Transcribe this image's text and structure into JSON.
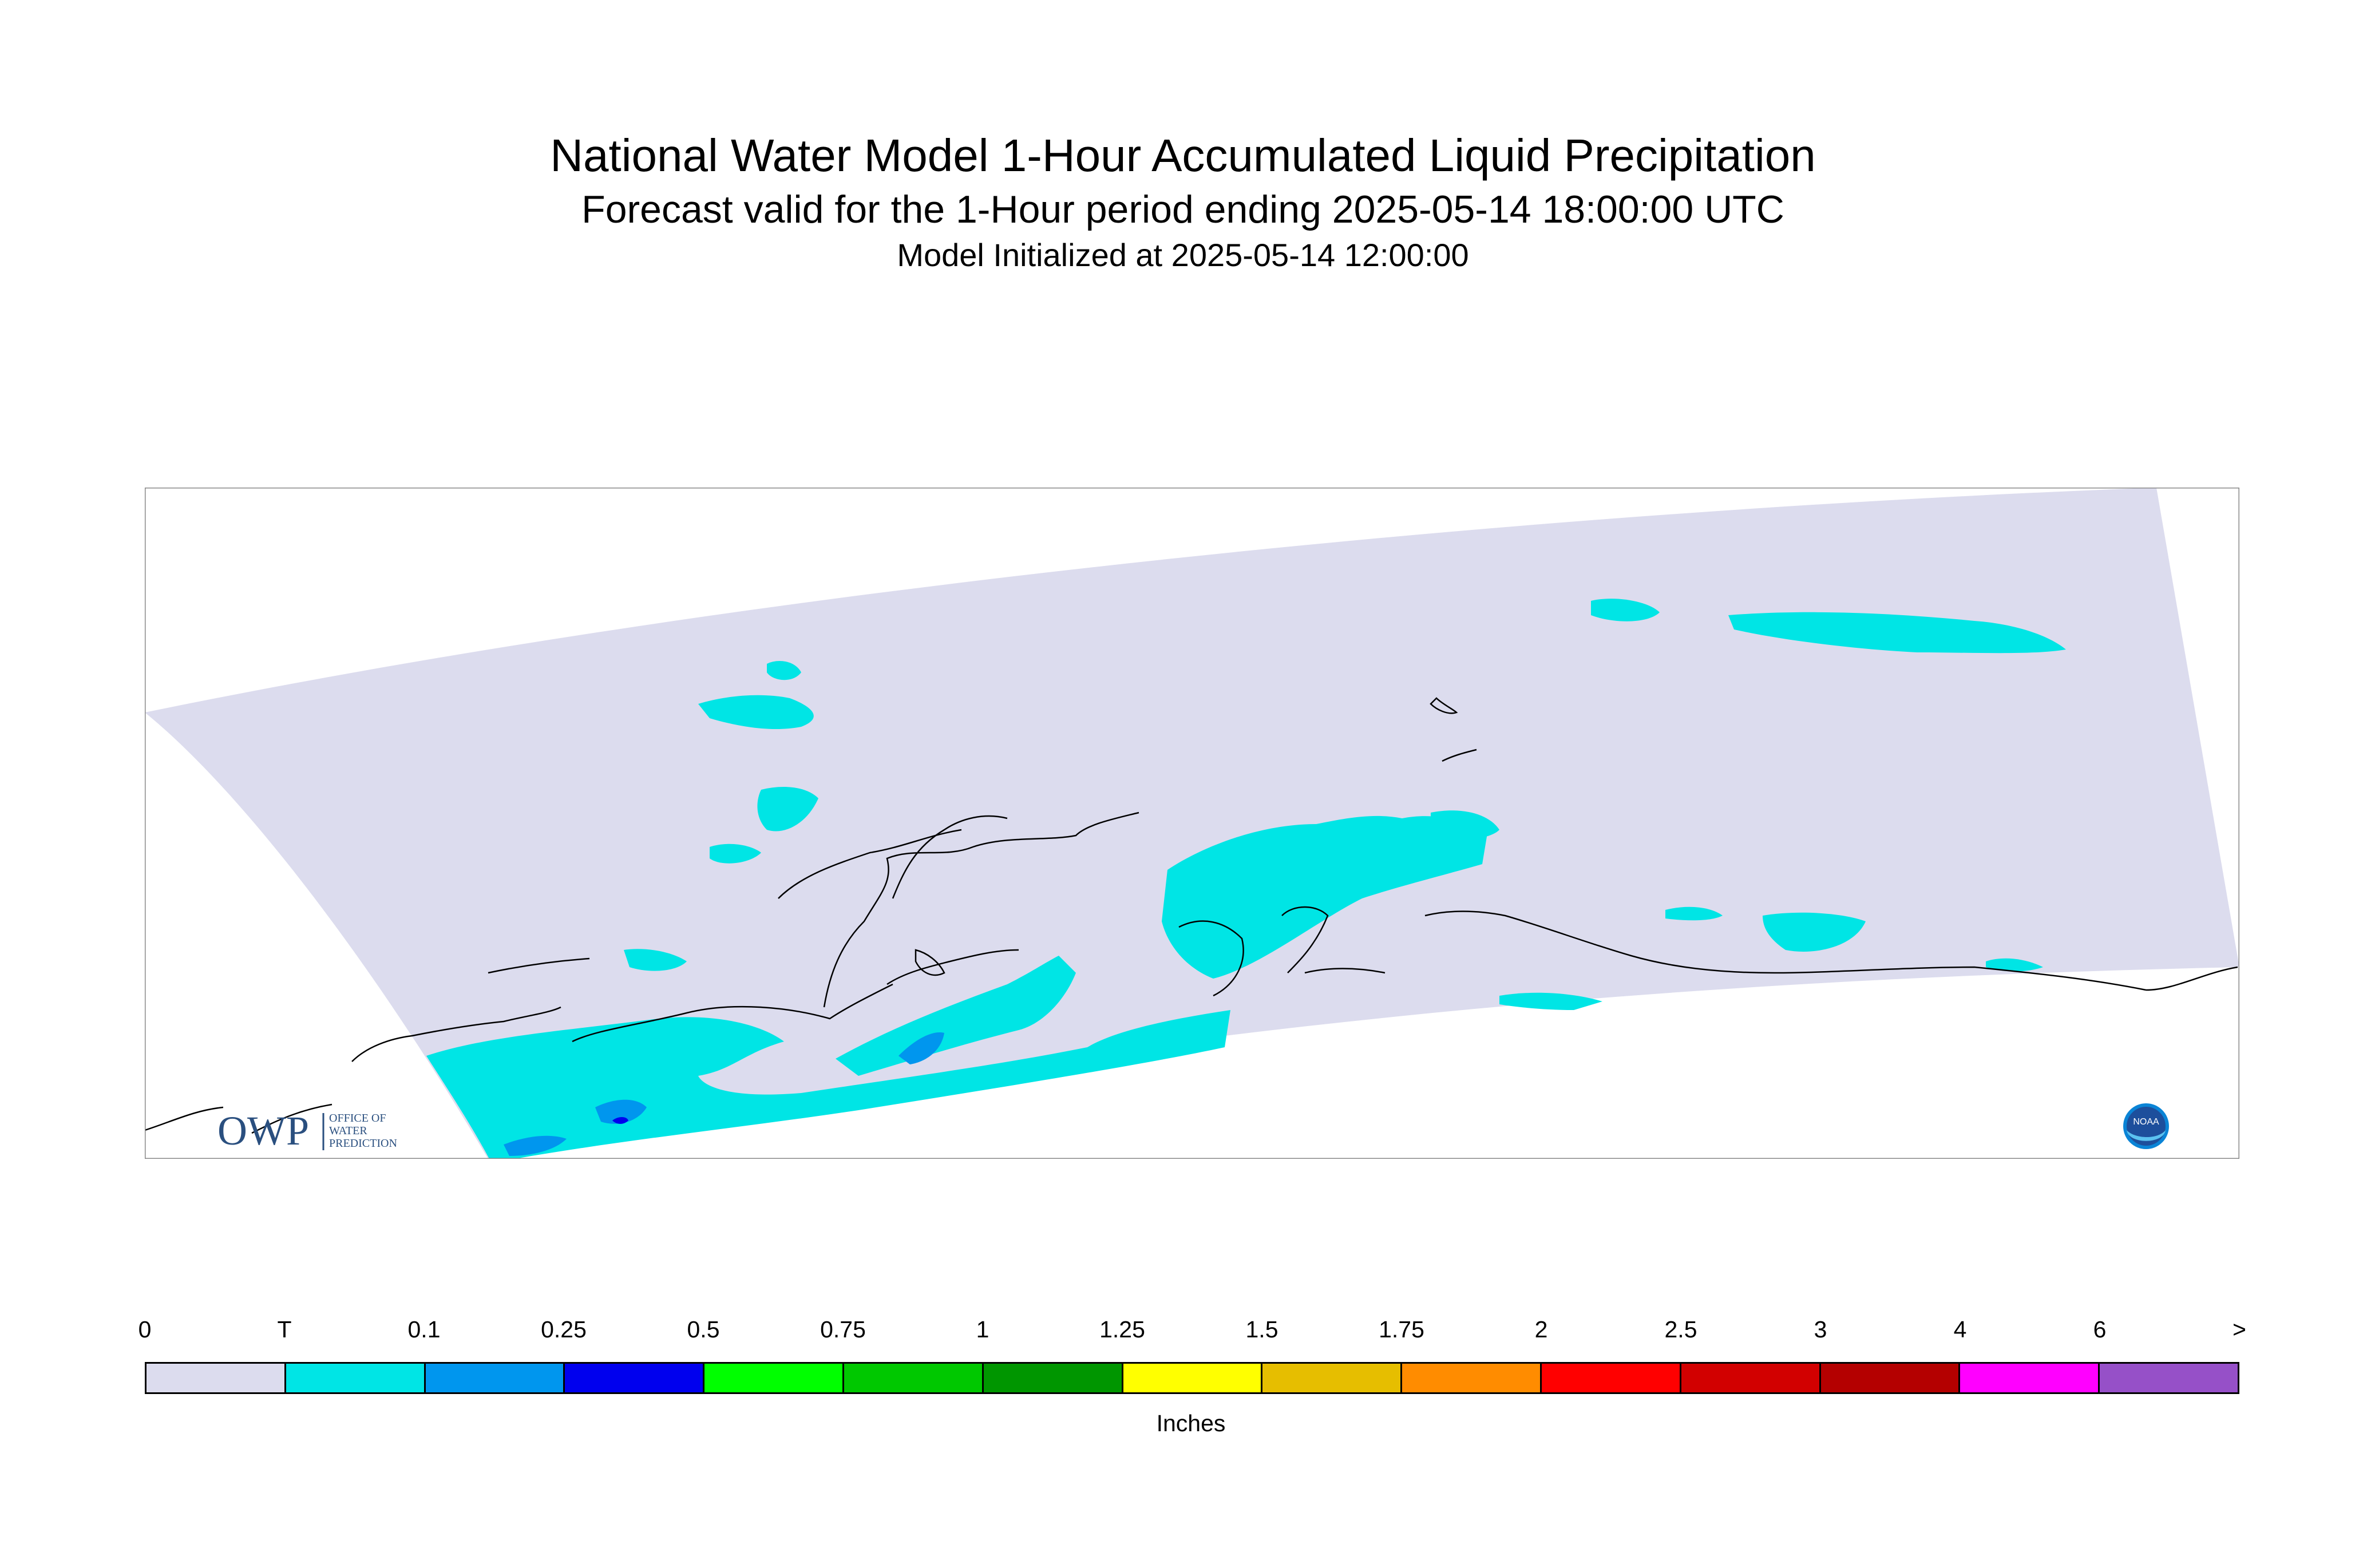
{
  "title": {
    "main": "National Water Model 1-Hour Accumulated Liquid Precipitation",
    "subtitle": "Forecast valid for the 1-Hour period ending 2025-05-14 18:00:00 UTC",
    "initialized": "Model Initialized at 2025-05-14 12:00:00"
  },
  "map": {
    "domain_fill_color": "#dcdcee",
    "coastline_color": "#000000",
    "light_precip_color": "#00e5e5",
    "medium_precip_color": "#0096ee",
    "heavy_precip_color": "#0000ee"
  },
  "logos": {
    "owp_text": "OWP",
    "owp_subtext": [
      "OFFICE OF",
      "WATER",
      "PREDICTION"
    ],
    "noaa_text": "NOAA"
  },
  "legend": {
    "unit": "Inches",
    "labels": [
      "0",
      "T",
      "0.1",
      "0.25",
      "0.5",
      "0.75",
      "1",
      "1.25",
      "1.5",
      "1.75",
      "2",
      "2.5",
      "3",
      "4",
      "6",
      ">"
    ],
    "colors": [
      "#dcdcee",
      "#00e5e5",
      "#0096ee",
      "#0000ee",
      "#00ff00",
      "#00c800",
      "#009600",
      "#ffff00",
      "#e6be00",
      "#ff8c00",
      "#ff0000",
      "#d20000",
      "#b40000",
      "#ff00ff",
      "#9650c8"
    ]
  }
}
